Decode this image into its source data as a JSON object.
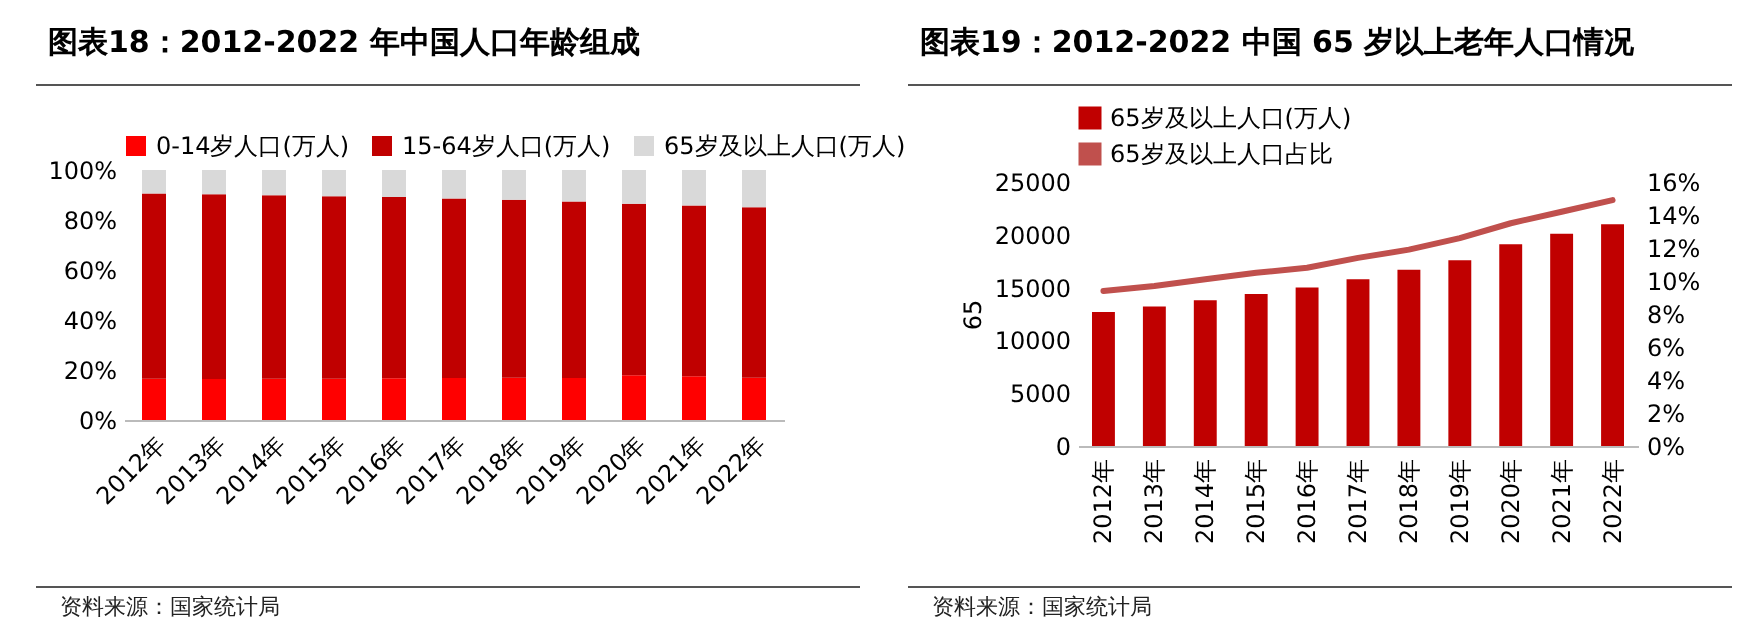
{
  "chart_data": [
    {
      "type": "bar",
      "title": "图表18：2012-2022 年中国人口年龄组成",
      "categories": [
        "2012年",
        "2013年",
        "2014年",
        "2015年",
        "2016年",
        "2017年",
        "2018年",
        "2019年",
        "2020年",
        "2021年",
        "2022年"
      ],
      "stacked": true,
      "series": [
        {
          "name": "0-14岁人口(万人)",
          "color": "#ff0000",
          "values": [
            16.5,
            16.4,
            16.5,
            16.5,
            16.7,
            16.8,
            16.9,
            16.8,
            17.9,
            17.5,
            16.9
          ]
        },
        {
          "name": "15-64岁人口(万人)",
          "color": "#c00000",
          "values": [
            74.1,
            73.9,
            73.4,
            73.0,
            72.5,
            71.8,
            71.2,
            70.6,
            68.6,
            68.3,
            68.2
          ]
        },
        {
          "name": "65岁及以上人口(万人)",
          "color": "#d9d9d9",
          "values": [
            9.4,
            9.7,
            10.1,
            10.5,
            10.8,
            11.4,
            11.9,
            12.6,
            13.5,
            14.2,
            14.9
          ]
        }
      ],
      "ylim": [
        0,
        100
      ],
      "yticks": [
        {
          "value": 0,
          "label": "0%"
        },
        {
          "value": 20,
          "label": "20%"
        },
        {
          "value": 40,
          "label": "40%"
        },
        {
          "value": 60,
          "label": "60%"
        },
        {
          "value": 80,
          "label": "80%"
        },
        {
          "value": 100,
          "label": "100%"
        }
      ],
      "legend": "top",
      "annotations": [
        "资料来源：国家统计局"
      ]
    },
    {
      "type": "bar",
      "title": "图表19：2012-2022 中国 65 岁以上老年人口情况",
      "ylabel": "65",
      "categories": [
        "2012年",
        "2013年",
        "2014年",
        "2015年",
        "2016年",
        "2017年",
        "2018年",
        "2019年",
        "2020年",
        "2021年",
        "2022年"
      ],
      "series": [
        {
          "name": "65岁及以上人口(万人)",
          "color": "#c00000",
          "values": [
            12700,
            13200,
            13800,
            14400,
            15000,
            15800,
            16700,
            17600,
            19100,
            20100,
            21000
          ]
        },
        {
          "name": "65岁及以上人口占比",
          "color": "#c0504d",
          "type": "line",
          "axis": "y2",
          "values": [
            9.4,
            9.7,
            10.1,
            10.5,
            10.8,
            11.4,
            11.9,
            12.6,
            13.5,
            14.2,
            14.9
          ]
        }
      ],
      "ylim": [
        0,
        25000
      ],
      "yticks": [
        0,
        5000,
        10000,
        15000,
        20000,
        25000
      ],
      "y2lim": [
        0,
        16
      ],
      "y2ticks": [
        {
          "value": 0,
          "label": "0%"
        },
        {
          "value": 2,
          "label": "2%"
        },
        {
          "value": 4,
          "label": "4%"
        },
        {
          "value": 6,
          "label": "6%"
        },
        {
          "value": 8,
          "label": "8%"
        },
        {
          "value": 10,
          "label": "10%"
        },
        {
          "value": 12,
          "label": "12%"
        },
        {
          "value": 14,
          "label": "14%"
        },
        {
          "value": 16,
          "label": "16%"
        }
      ],
      "legend": "top",
      "annotations": [
        "资料来源：国家统计局"
      ]
    }
  ]
}
